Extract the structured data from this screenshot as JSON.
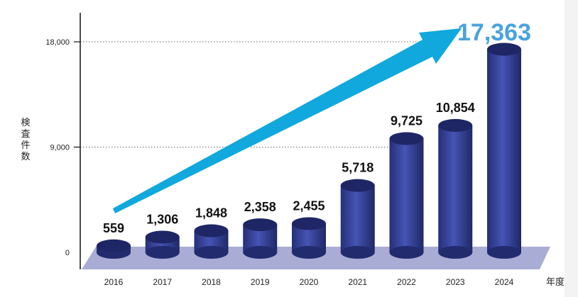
{
  "chart_data": {
    "type": "bar",
    "title": "",
    "ylabel": "検査件数",
    "xlabel": "年度",
    "categories": [
      "2016",
      "2017",
      "2018",
      "2019",
      "2020",
      "2021",
      "2022",
      "2023",
      "2024"
    ],
    "values": [
      559,
      1306,
      1848,
      2358,
      2455,
      5718,
      9725,
      10854,
      17363
    ],
    "value_labels": [
      "559",
      "1,306",
      "1,848",
      "2,358",
      "2,455",
      "5,718",
      "9,725",
      "10,854",
      "17,363"
    ],
    "y_ticks": [
      {
        "value": 0,
        "label": "0"
      },
      {
        "value": 9000,
        "label": "9,000"
      },
      {
        "value": 18000,
        "label": "18,000"
      }
    ],
    "ylim": [
      0,
      18000
    ],
    "grid": "dotted horizontal at tick values",
    "legend": "none",
    "highlight_index": 8,
    "trend_arrow": true,
    "colors": {
      "bar": "#2f3a8f",
      "bar_top": "#1e2665",
      "floor": "#a9acd4",
      "arrow": "#10a8dd",
      "highlight": "#4aa3dc"
    }
  }
}
